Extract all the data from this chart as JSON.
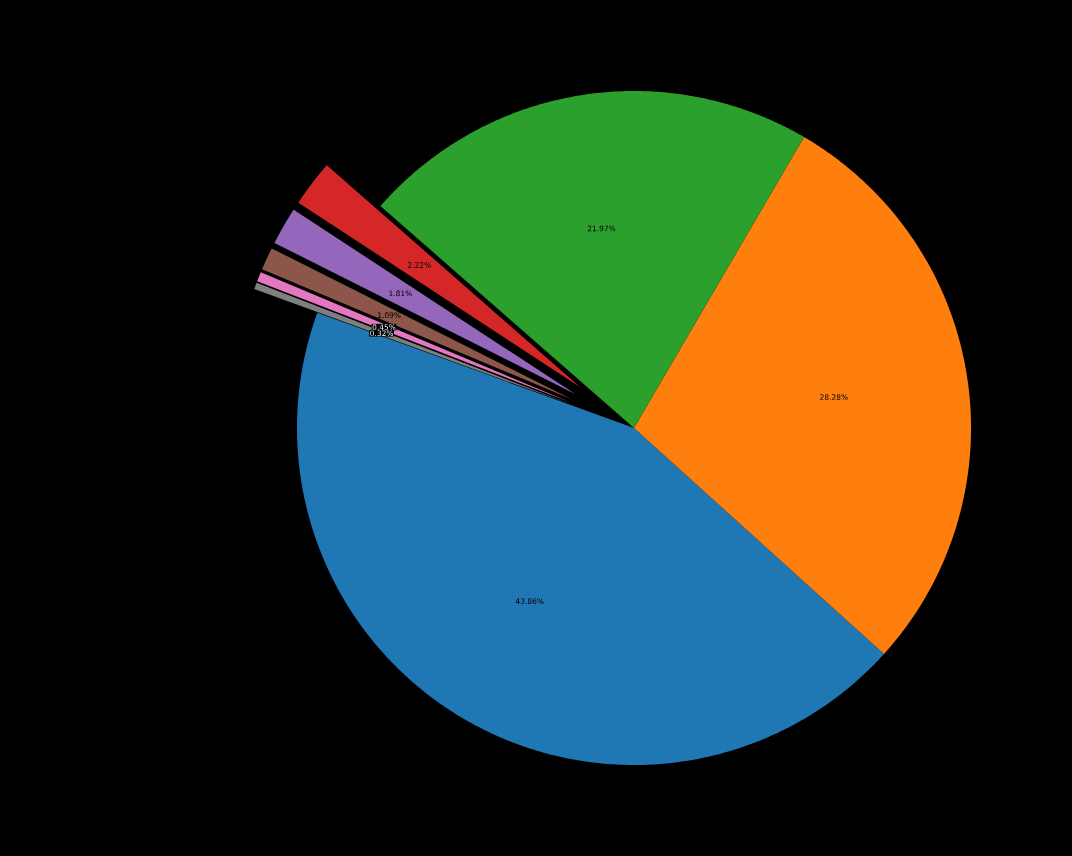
{
  "chart_data": {
    "type": "pie",
    "categories": [
      null,
      null,
      null,
      null,
      null,
      null,
      null,
      null
    ],
    "values": [
      43.86,
      28.28,
      21.97,
      2.22,
      1.81,
      1.09,
      0.45,
      0.32
    ],
    "colors": [
      "#1f77b4",
      "#ff7f0e",
      "#2ca02c",
      "#d62728",
      "#9467bd",
      "#8c564b",
      "#e377c2",
      "#7f7f7f"
    ],
    "value_labels": [
      "43.86%",
      "28.28%",
      "21.97%",
      "2.22%",
      "1.81%",
      "1.09%",
      "0.45%",
      "0.32%"
    ]
  }
}
